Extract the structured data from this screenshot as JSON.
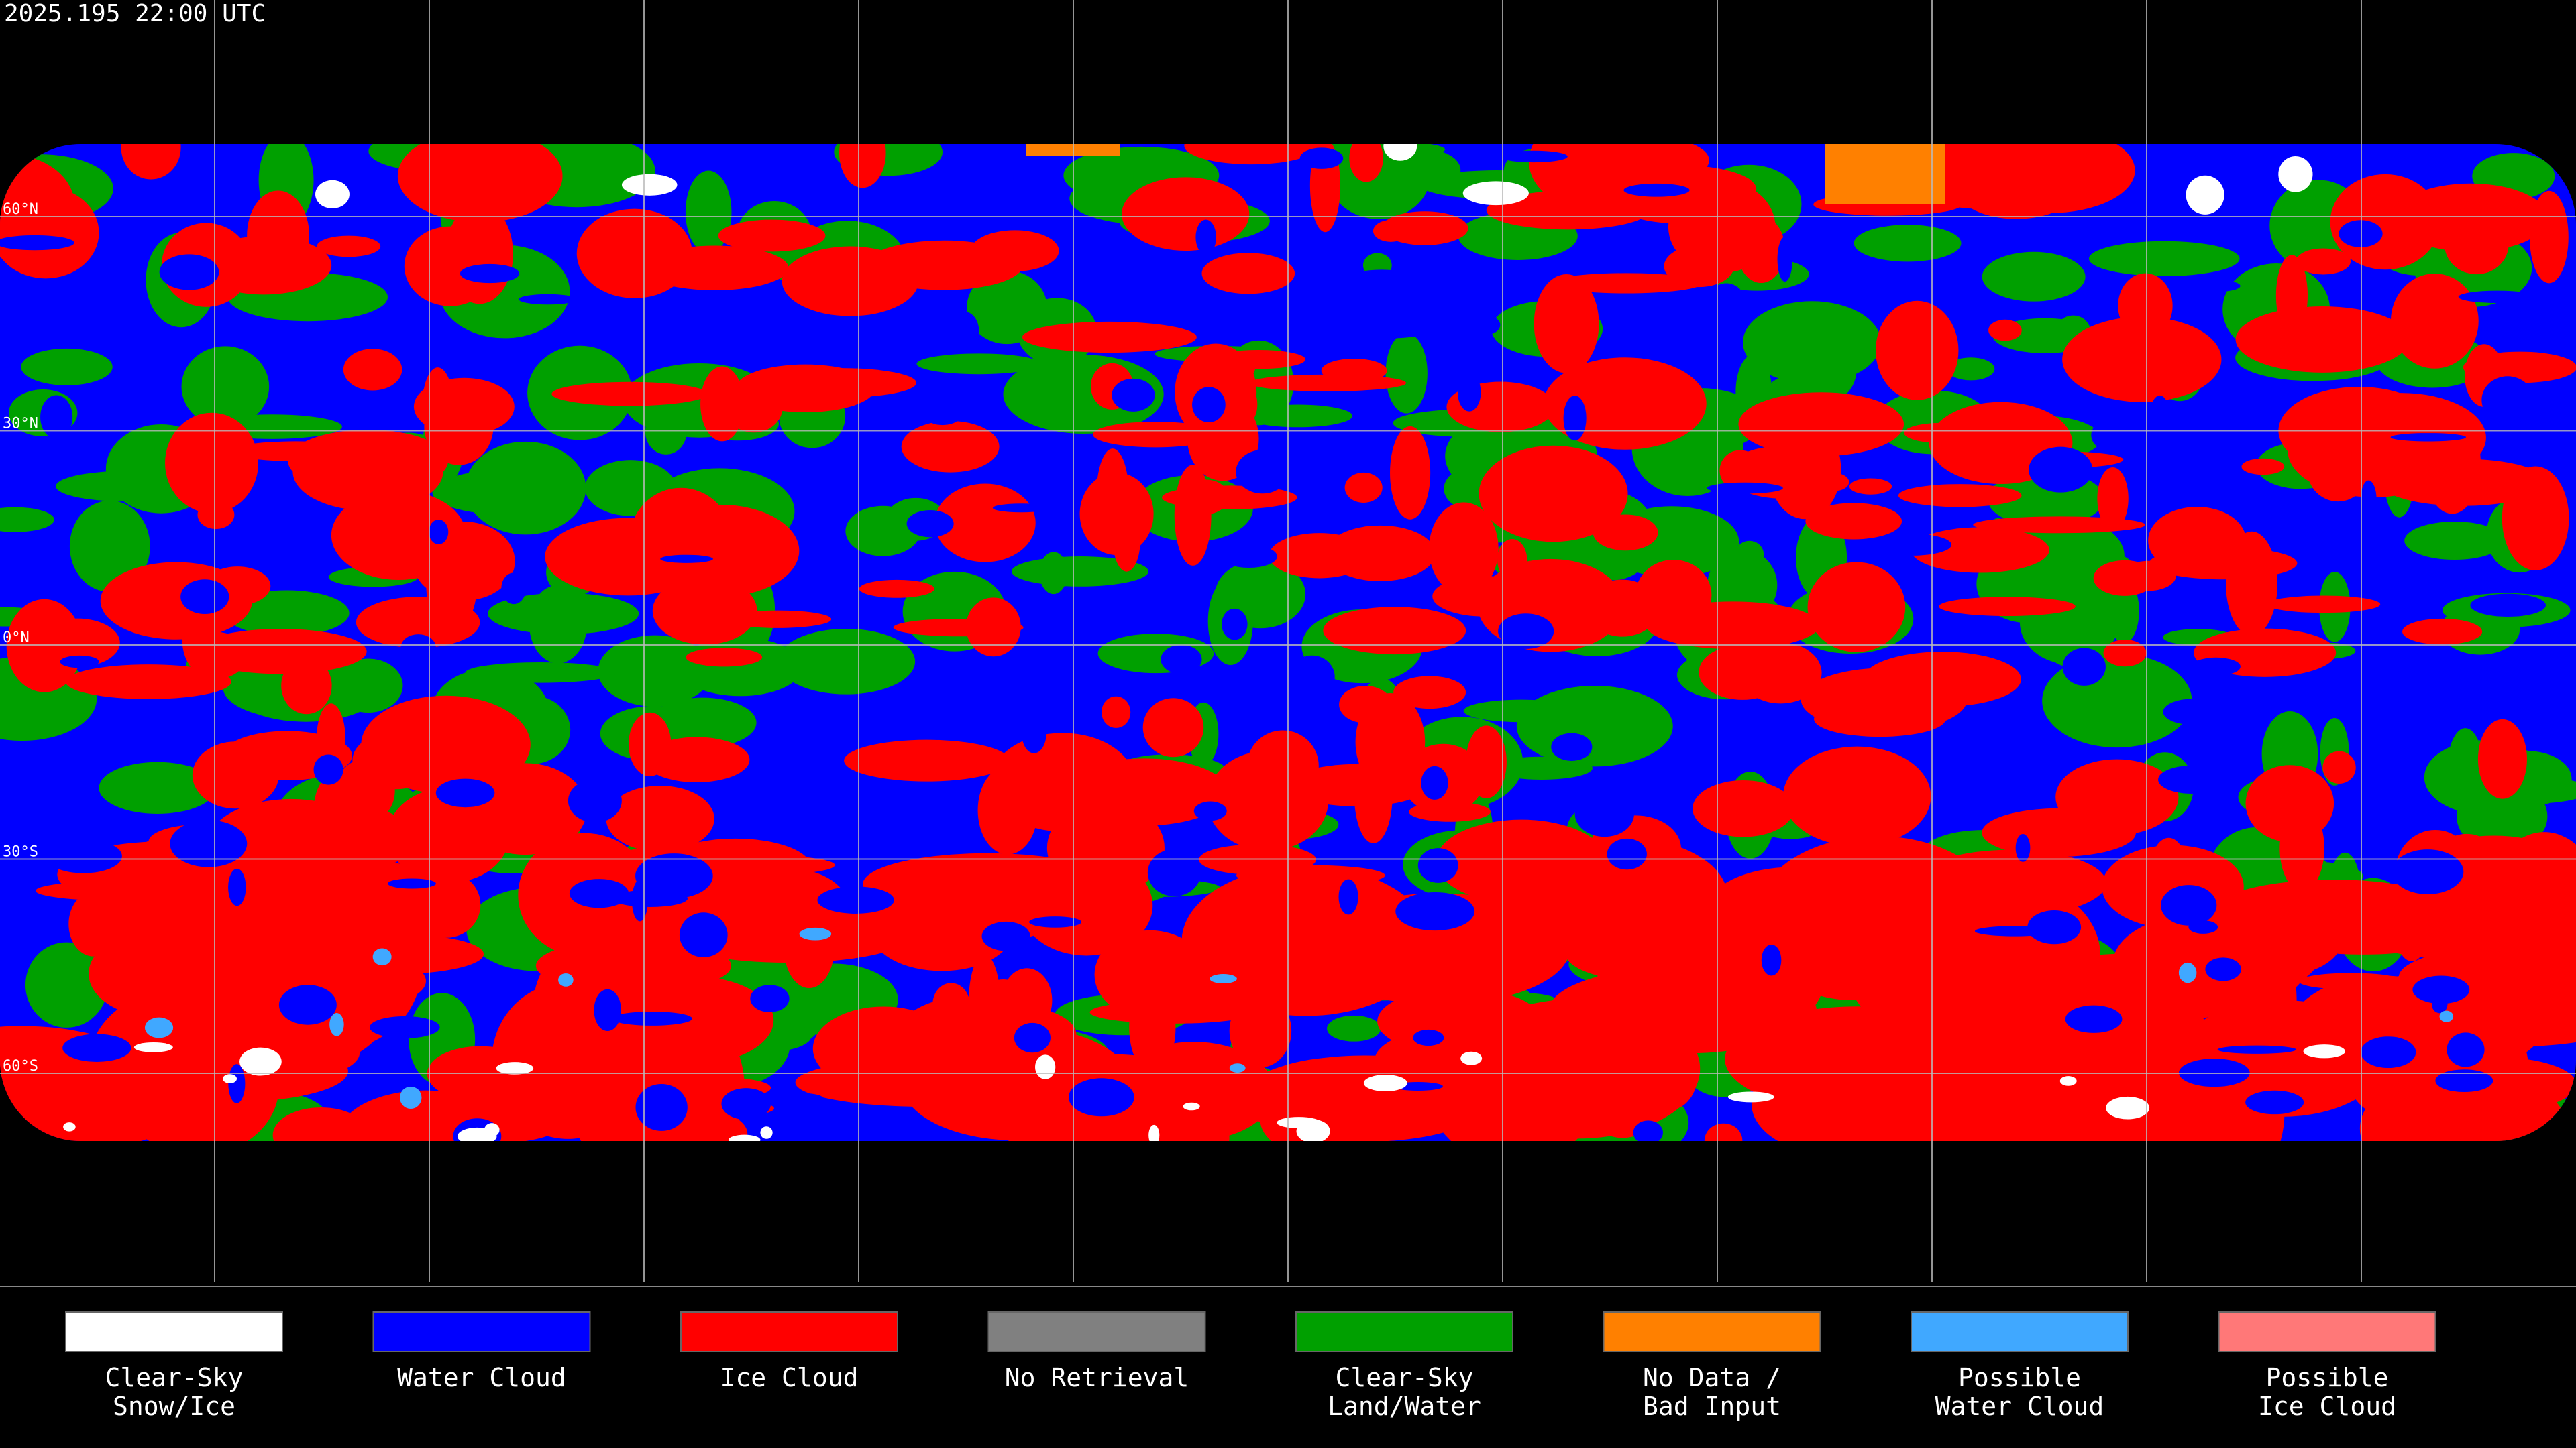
{
  "header": {
    "title": "2025.195 22:00 UTC"
  },
  "latitude_labels": [
    "60°N",
    "30°N",
    "0°N",
    "30°S",
    "60°S"
  ],
  "legend": {
    "items": [
      {
        "label": [
          "Clear-Sky",
          "Snow/Ice"
        ],
        "color": "#ffffff"
      },
      {
        "label": [
          "Water Cloud"
        ],
        "color": "#0000ff"
      },
      {
        "label": [
          "Ice Cloud"
        ],
        "color": "#ff0000"
      },
      {
        "label": [
          "No Retrieval"
        ],
        "color": "#808080"
      },
      {
        "label": [
          "Clear-Sky",
          "Land/Water"
        ],
        "color": "#00a000"
      },
      {
        "label": [
          "No Data /",
          "Bad Input"
        ],
        "color": "#ff8000"
      },
      {
        "label": [
          "Possible",
          "Water Cloud"
        ],
        "color": "#40a8ff"
      },
      {
        "label": [
          "Possible",
          "Ice Cloud"
        ],
        "color": "#ff7878"
      }
    ]
  }
}
